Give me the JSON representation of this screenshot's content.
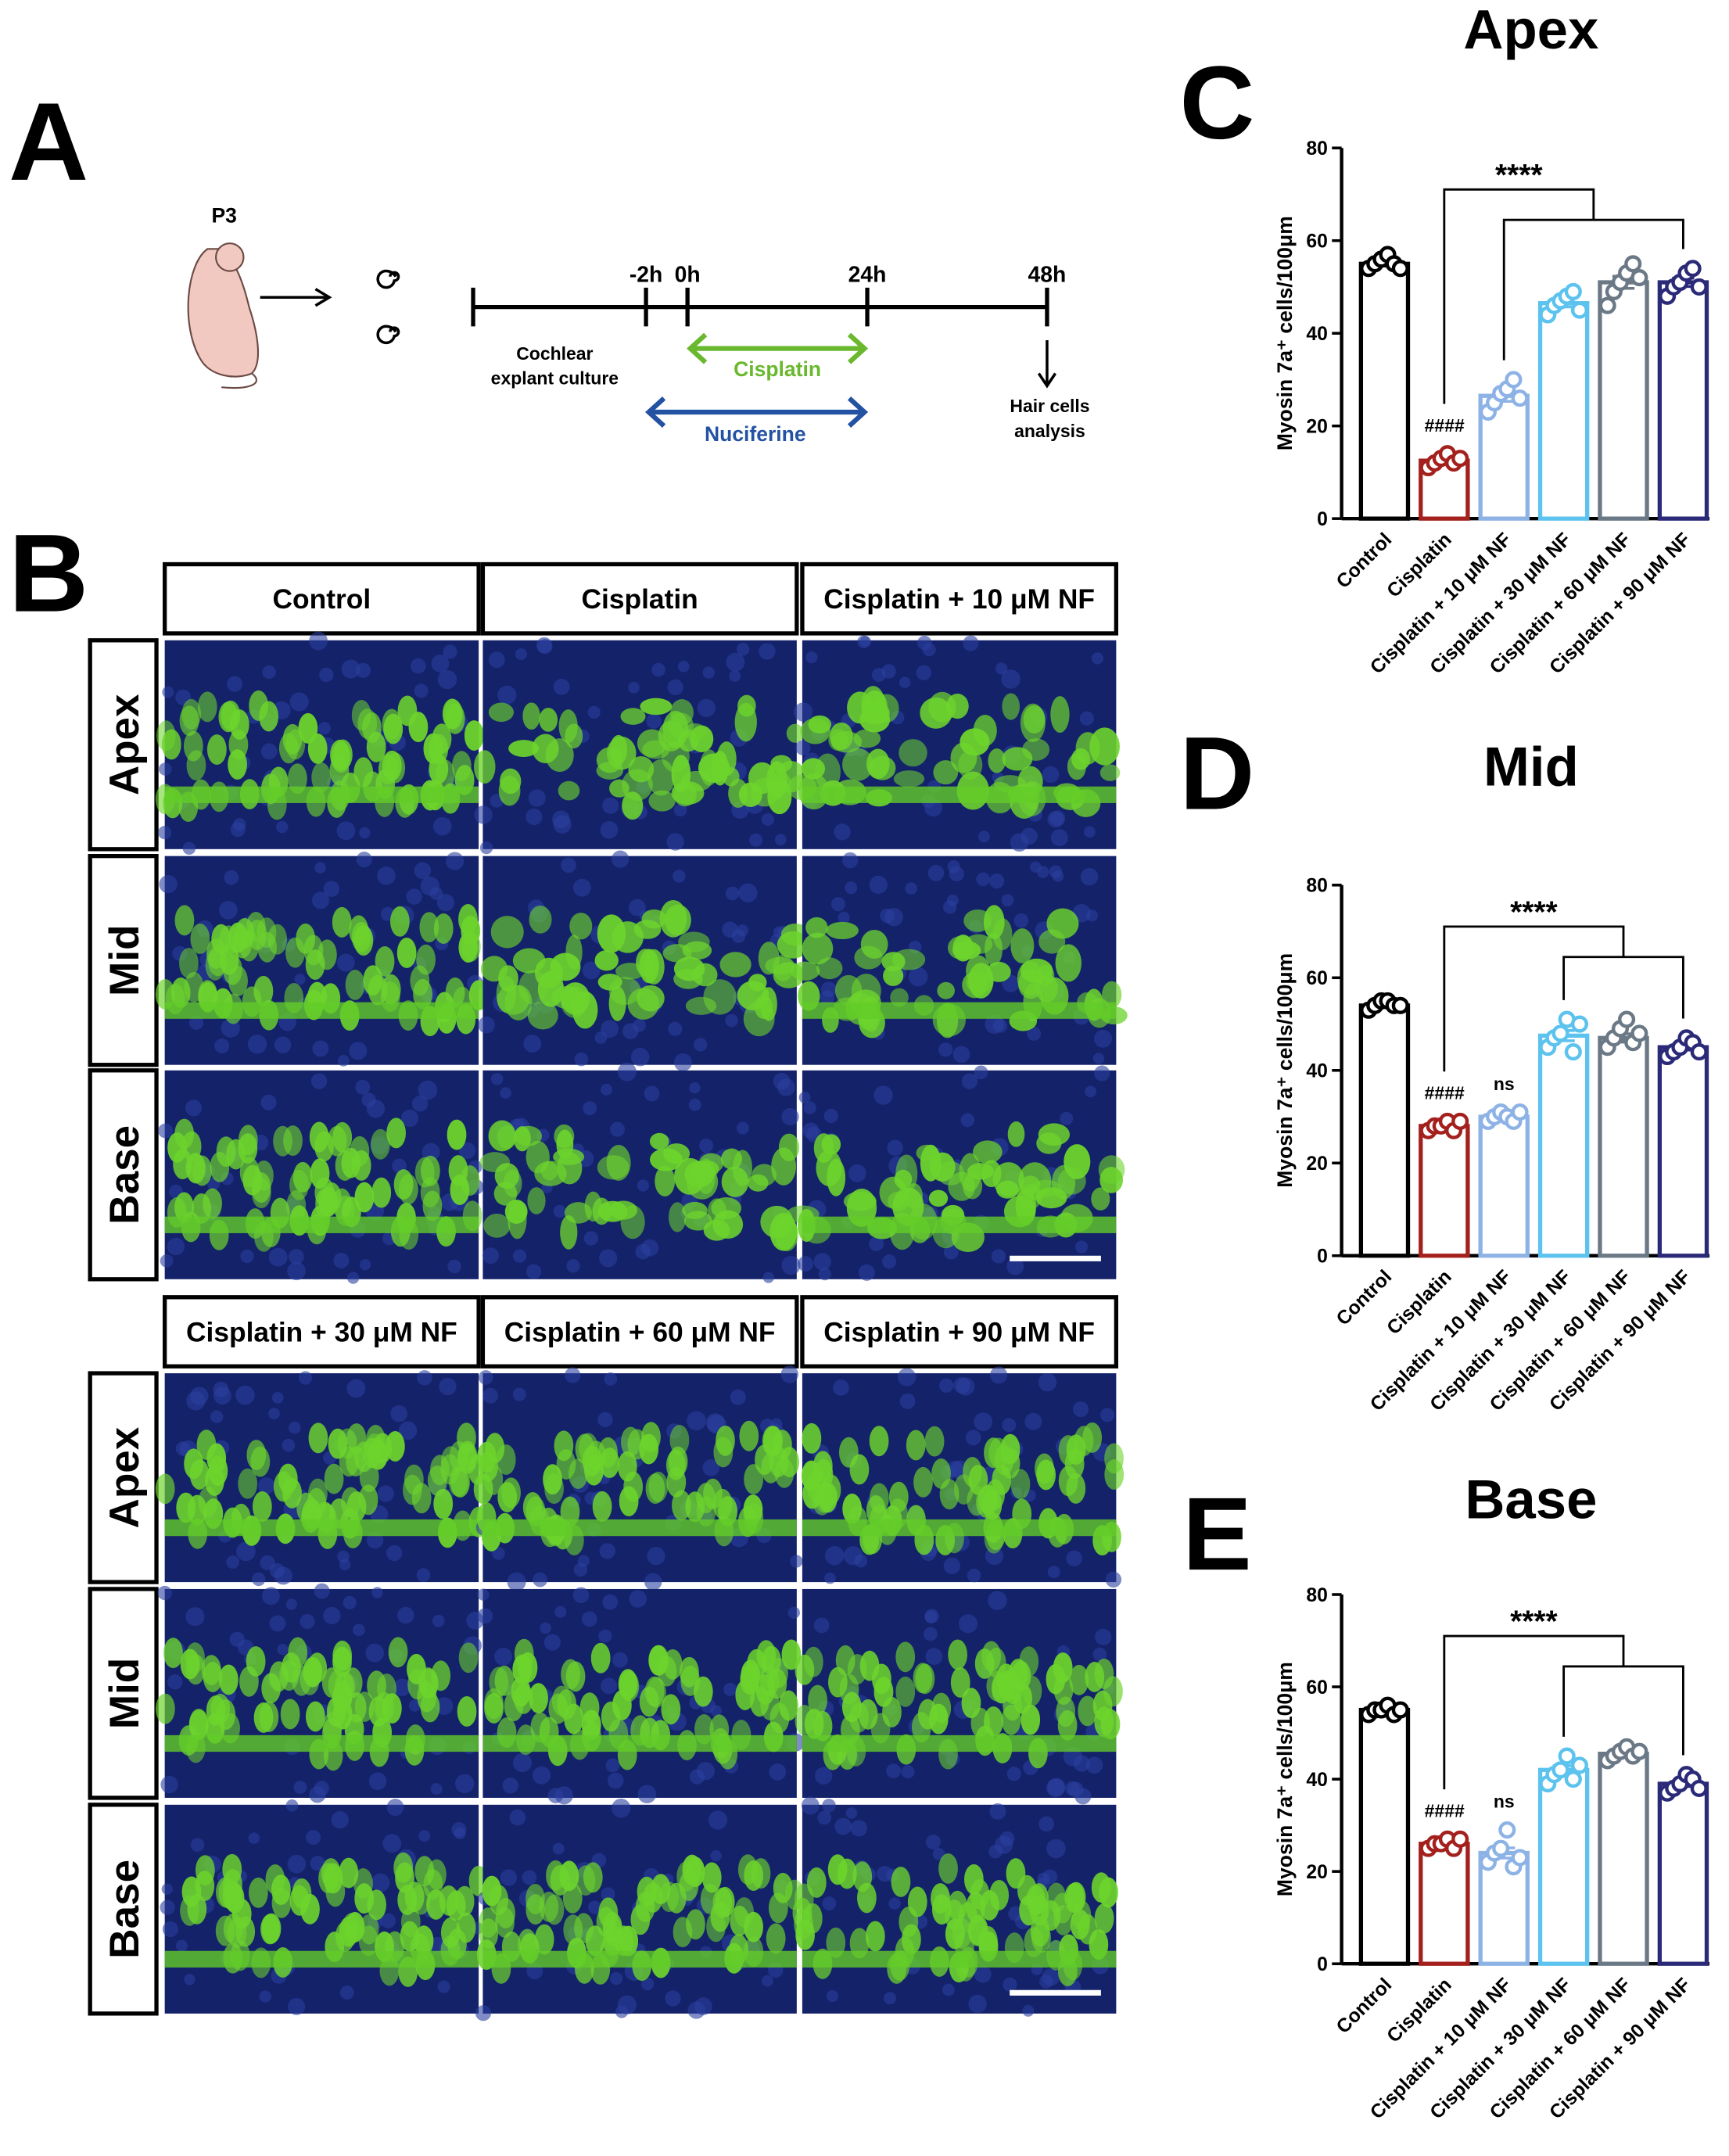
{
  "panel_a": {
    "label": "A",
    "age": "P3",
    "timepoints": [
      "-2h",
      "0h",
      "24h",
      "48h"
    ],
    "culture": [
      "Cochlear",
      "explant culture"
    ],
    "cisplatin": "Cisplatin",
    "nuciferine": "Nuciferine",
    "analysis": [
      "Hair cells",
      "analysis"
    ]
  },
  "panel_b": {
    "label": "B",
    "groups": [
      [
        "Control",
        "Cisplatin",
        "Cisplatin + 10 μM NF"
      ],
      [
        "Cisplatin + 30 μM NF",
        "Cisplatin + 60 μM NF",
        "Cisplatin + 90 μM NF"
      ]
    ],
    "regions": [
      "Apex",
      "Mid",
      "Base"
    ]
  },
  "chart_data": [
    {
      "type": "bar",
      "panel_label": "C",
      "title": "Apex",
      "y_label": "Myosin 7a⁺ cells/100μm",
      "categories": [
        "Control",
        "Cisplatin",
        "Cisplatin + 10 μM NF",
        "Cisplatin + 30 μM NF",
        "Cisplatin + 60 μM NF",
        "Cisplatin + 90 μM NF"
      ],
      "colors": [
        "#000000",
        "#a3201d",
        "#8db3e6",
        "#5cc2ee",
        "#6b7886",
        "#2b2a78"
      ],
      "values": [
        55,
        12.5,
        26.5,
        46.5,
        51,
        51
      ],
      "errors": [
        0.5,
        0.6,
        1.2,
        0.8,
        1.3,
        0.9
      ],
      "points": [
        [
          54,
          55,
          56,
          57,
          55,
          54
        ],
        [
          11,
          12,
          13,
          14,
          12,
          13
        ],
        [
          23,
          25,
          27,
          28,
          30,
          26
        ],
        [
          44,
          46,
          47,
          48,
          49,
          45
        ],
        [
          46,
          49,
          51,
          53,
          55,
          52
        ],
        [
          48,
          50,
          51,
          53,
          54,
          50
        ]
      ],
      "ylim": [
        0,
        80
      ],
      "yticks": [
        0,
        20,
        40,
        60,
        80
      ],
      "annotations": {
        "vs_control": "####",
        "stars": "****"
      }
    },
    {
      "type": "bar",
      "panel_label": "D",
      "title": "Mid",
      "y_label": "Myosin 7a⁺ cells/100μm",
      "categories": [
        "Control",
        "Cisplatin",
        "Cisplatin + 10 μM NF",
        "Cisplatin + 30 μM NF",
        "Cisplatin + 60 μM NF",
        "Cisplatin + 90 μM NF"
      ],
      "colors": [
        "#000000",
        "#a3201d",
        "#8db3e6",
        "#5cc2ee",
        "#6b7886",
        "#2b2a78"
      ],
      "values": [
        54,
        28,
        30,
        47.5,
        47,
        45
      ],
      "errors": [
        0.4,
        0.5,
        0.5,
        1.1,
        0.9,
        0.6
      ],
      "points": [
        [
          53,
          54,
          55,
          55,
          54,
          54
        ],
        [
          27,
          28,
          28,
          29,
          27,
          29
        ],
        [
          29,
          30,
          31,
          30,
          29,
          31
        ],
        [
          45,
          47,
          48,
          51,
          44,
          50
        ],
        [
          45,
          47,
          49,
          51,
          46,
          48
        ],
        [
          43,
          44,
          45,
          47,
          46,
          44
        ]
      ],
      "ylim": [
        0,
        80
      ],
      "yticks": [
        0,
        20,
        40,
        60,
        80
      ],
      "annotations": {
        "vs_control": "####",
        "ns": "ns",
        "stars": "****"
      }
    },
    {
      "type": "bar",
      "panel_label": "E",
      "title": "Base",
      "y_label": "Myosin 7a⁺ cells/100μm",
      "categories": [
        "Control",
        "Cisplatin",
        "Cisplatin + 10 μM NF",
        "Cisplatin + 30 μM NF",
        "Cisplatin + 60 μM NF",
        "Cisplatin + 90 μM NF"
      ],
      "colors": [
        "#000000",
        "#a3201d",
        "#8db3e6",
        "#5cc2ee",
        "#6b7886",
        "#2b2a78"
      ],
      "values": [
        55,
        26,
        24,
        42,
        45.5,
        39
      ],
      "errors": [
        0.4,
        0.5,
        1.1,
        0.9,
        0.5,
        0.6
      ],
      "points": [
        [
          54,
          55,
          55,
          56,
          54,
          55
        ],
        [
          25,
          26,
          26,
          27,
          25,
          27
        ],
        [
          22,
          24,
          25,
          29,
          21,
          23
        ],
        [
          39,
          41,
          42,
          45,
          40,
          43
        ],
        [
          44,
          45,
          46,
          47,
          45,
          46
        ],
        [
          37,
          38,
          39,
          41,
          40,
          38
        ]
      ],
      "ylim": [
        0,
        80
      ],
      "yticks": [
        0,
        20,
        40,
        60,
        80
      ],
      "annotations": {
        "vs_control": "####",
        "ns": "ns",
        "stars": "****"
      }
    }
  ]
}
